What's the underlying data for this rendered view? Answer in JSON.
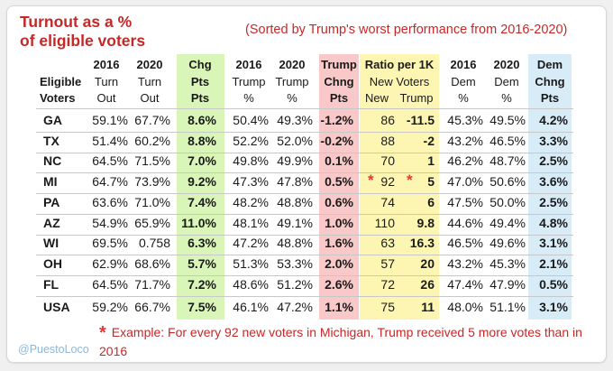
{
  "title_line1": "Turnout as a %",
  "title_line2": "of eligible voters",
  "subtitle": "(Sorted by Trump's worst performance from 2016-2020)",
  "header_row1": {
    "turnout_2016": "2016",
    "turnout_2020": "2020",
    "chg": "Chg",
    "trump_2016": "2016",
    "trump_2020": "2020",
    "trump_chng": "Trump",
    "ratio": "Ratio per 1K",
    "dem_2016": "2016",
    "dem_2020": "2020",
    "dem_chng": "Dem"
  },
  "header_row2": {
    "eligible": "Eligible",
    "turnout_2016": "Turn",
    "turnout_2020": "Turn",
    "chg": "Pts",
    "trump_2016": "Trump",
    "trump_2020": "Trump",
    "trump_chng": "Chng",
    "ratio_label": "New Voters",
    "dem_2016": "Dem",
    "dem_2020": "Dem",
    "dem_chng": "Chng"
  },
  "header_row3": {
    "voters": "Voters",
    "turnout_2016": "Out",
    "turnout_2020": "Out",
    "chg": "Pts",
    "trump_2016": "%",
    "trump_2020": "%",
    "trump_chng": "Pts",
    "ratio_new": "New",
    "ratio_trump": "Trump",
    "dem_2016": "%",
    "dem_2020": "%",
    "dem_chng": "Pts"
  },
  "rows": [
    {
      "state": "GA",
      "t16": "59.1%",
      "t20": "67.7%",
      "chg": "8.6%",
      "tr16": "50.4%",
      "tr20": "49.3%",
      "trchg": "-1.2%",
      "new": "86",
      "trump": "-11.5",
      "d16": "45.3%",
      "d20": "49.5%",
      "dchg": "4.2%"
    },
    {
      "state": "TX",
      "t16": "51.4%",
      "t20": "60.2%",
      "chg": "8.8%",
      "tr16": "52.2%",
      "tr20": "52.0%",
      "trchg": "-0.2%",
      "new": "88",
      "trump": "-2",
      "d16": "43.2%",
      "d20": "46.5%",
      "dchg": "3.3%"
    },
    {
      "state": "NC",
      "t16": "64.5%",
      "t20": "71.5%",
      "chg": "7.0%",
      "tr16": "49.8%",
      "tr20": "49.9%",
      "trchg": "0.1%",
      "new": "70",
      "trump": "1",
      "d16": "46.2%",
      "d20": "48.7%",
      "dchg": "2.5%"
    },
    {
      "state": "MI",
      "t16": "64.7%",
      "t20": "73.9%",
      "chg": "9.2%",
      "tr16": "47.3%",
      "tr20": "47.8%",
      "trchg": "0.5%",
      "new": "92",
      "trump": "5",
      "d16": "47.0%",
      "d20": "50.6%",
      "dchg": "3.6%"
    },
    {
      "state": "PA",
      "t16": "63.6%",
      "t20": "71.0%",
      "chg": "7.4%",
      "tr16": "48.2%",
      "tr20": "48.8%",
      "trchg": "0.6%",
      "new": "74",
      "trump": "6",
      "d16": "47.5%",
      "d20": "50.0%",
      "dchg": "2.5%"
    },
    {
      "state": "AZ",
      "t16": "54.9%",
      "t20": "65.9%",
      "chg": "11.0%",
      "tr16": "48.1%",
      "tr20": "49.1%",
      "trchg": "1.0%",
      "new": "110",
      "trump": "9.8",
      "d16": "44.6%",
      "d20": "49.4%",
      "dchg": "4.8%"
    },
    {
      "state": "WI",
      "t16": "69.5%",
      "t20": "0.758",
      "chg": "6.3%",
      "tr16": "47.2%",
      "tr20": "48.8%",
      "trchg": "1.6%",
      "new": "63",
      "trump": "16.3",
      "d16": "46.5%",
      "d20": "49.6%",
      "dchg": "3.1%"
    },
    {
      "state": "OH",
      "t16": "62.9%",
      "t20": "68.6%",
      "chg": "5.7%",
      "tr16": "51.3%",
      "tr20": "53.3%",
      "trchg": "2.0%",
      "new": "57",
      "trump": "20",
      "d16": "43.2%",
      "d20": "45.3%",
      "dchg": "2.1%"
    },
    {
      "state": "FL",
      "t16": "64.5%",
      "t20": "71.7%",
      "chg": "7.2%",
      "tr16": "48.6%",
      "tr20": "51.2%",
      "trchg": "2.6%",
      "new": "72",
      "trump": "26",
      "d16": "47.4%",
      "d20": "47.9%",
      "dchg": "0.5%"
    }
  ],
  "total": {
    "state": "USA",
    "t16": "59.2%",
    "t20": "66.7%",
    "chg": "7.5%",
    "tr16": "46.1%",
    "tr20": "47.2%",
    "trchg": "1.1%",
    "new": "75",
    "trump": "11",
    "d16": "48.0%",
    "d20": "51.1%",
    "dchg": "3.1%"
  },
  "mi_stars": [
    "*",
    "*"
  ],
  "footnote_star": "*",
  "footnote": "Example: For every 92 new voters in Michigan, Trump received 5 more votes than in 2016",
  "handle": "@PuestoLoco",
  "colors": {
    "title_red": "#c62828",
    "chg_green": "#d9f5b8",
    "trump_pink": "#f9c8c8",
    "ratio_yellow": "#fdf6b3",
    "dem_blue": "#d8ecf8",
    "star_red": "#e53935"
  }
}
